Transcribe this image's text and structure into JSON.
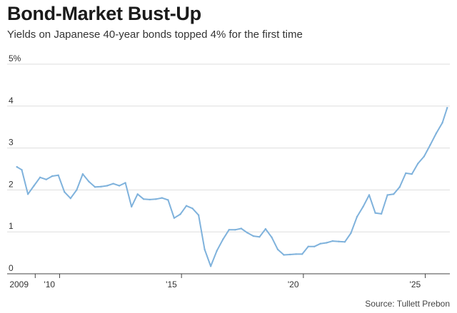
{
  "header": {
    "title": "Bond-Market Bust-Up",
    "subtitle": "Yields on Japanese 40-year bonds topped 4% for the first time"
  },
  "footer": {
    "source": "Source: Tullett Prebon"
  },
  "colors": {
    "line": "#7fb2dc",
    "grid": "#dddddd",
    "axis": "#444444"
  },
  "chart_data": {
    "type": "line",
    "title": "Bond-Market Bust-Up",
    "subtitle": "Yields on Japanese 40-year bonds topped 4% for the first time",
    "xlabel": "",
    "ylabel": "",
    "ylim": [
      0,
      5
    ],
    "xlim": [
      2008.2,
      2025.95
    ],
    "grid": true,
    "y_ticks": [
      {
        "value": 5,
        "label": "5%"
      },
      {
        "value": 4,
        "label": "4"
      },
      {
        "value": 3,
        "label": "3"
      },
      {
        "value": 2,
        "label": "2"
      },
      {
        "value": 1,
        "label": "1"
      },
      {
        "value": 0,
        "label": "0"
      }
    ],
    "x_ticks": [
      {
        "value": 2009,
        "label": "2009"
      },
      {
        "value": 2010,
        "label": "'10"
      },
      {
        "value": 2015,
        "label": "'15"
      },
      {
        "value": 2020,
        "label": "'20"
      },
      {
        "value": 2025,
        "label": "'25"
      }
    ],
    "series": [
      {
        "x": [
          2008.25,
          2008.45,
          2008.7,
          2008.95,
          2009.2,
          2009.45,
          2009.7,
          2009.95,
          2010.2,
          2010.45,
          2010.7,
          2010.95,
          2011.2,
          2011.45,
          2011.7,
          2011.95,
          2012.2,
          2012.45,
          2012.7,
          2012.95,
          2013.2,
          2013.45,
          2013.7,
          2013.95,
          2014.2,
          2014.45,
          2014.7,
          2014.95,
          2015.2,
          2015.45,
          2015.7,
          2015.95,
          2016.2,
          2016.45,
          2016.7,
          2016.95,
          2017.2,
          2017.45,
          2017.7,
          2017.95,
          2018.2,
          2018.45,
          2018.7,
          2018.95,
          2019.2,
          2019.45,
          2019.7,
          2019.95,
          2020.2,
          2020.45,
          2020.7,
          2020.95,
          2021.2,
          2021.45,
          2021.7,
          2021.95,
          2022.2,
          2022.45,
          2022.7,
          2022.95,
          2023.2,
          2023.45,
          2023.7,
          2023.95,
          2024.2,
          2024.45,
          2024.7,
          2024.95,
          2025.2,
          2025.45,
          2025.7,
          2025.9
        ],
        "values": [
          2.55,
          2.48,
          1.9,
          2.1,
          2.3,
          2.25,
          2.33,
          2.35,
          1.95,
          1.8,
          2.0,
          2.38,
          2.2,
          2.07,
          2.08,
          2.1,
          2.15,
          2.1,
          2.17,
          1.6,
          1.9,
          1.78,
          1.77,
          1.78,
          1.81,
          1.76,
          1.33,
          1.42,
          1.62,
          1.56,
          1.4,
          0.58,
          0.18,
          0.55,
          0.82,
          1.05,
          1.05,
          1.08,
          0.98,
          0.9,
          0.88,
          1.07,
          0.87,
          0.58,
          0.45,
          0.46,
          0.47,
          0.47,
          0.65,
          0.65,
          0.72,
          0.74,
          0.78,
          0.77,
          0.76,
          0.97,
          1.36,
          1.6,
          1.88,
          1.45,
          1.43,
          1.88,
          1.9,
          2.07,
          2.4,
          2.38,
          2.63,
          2.8,
          3.07,
          3.35,
          3.6,
          3.96
        ]
      }
    ]
  }
}
